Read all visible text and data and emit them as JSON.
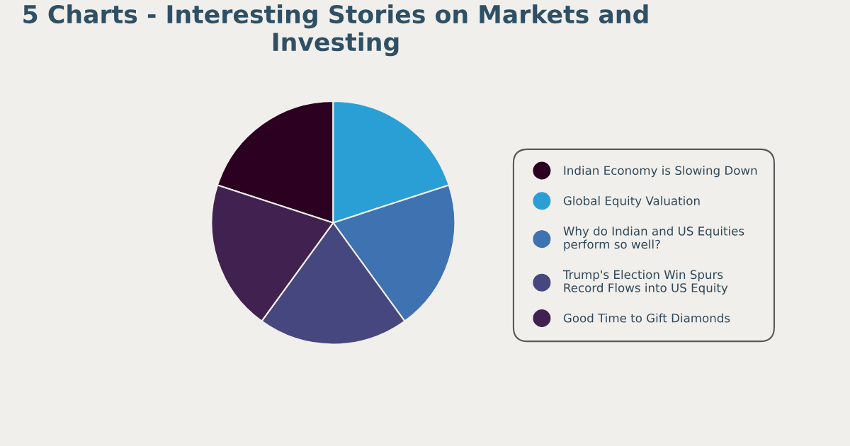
{
  "chart_data": {
    "type": "pie",
    "title": "5 Charts - Interesting Stories on Markets and Investing",
    "categories": [
      "Indian Economy is Slowing Down",
      "Global Equity Valuation",
      "Why do Indian and US Equities\nperform so well?",
      "Trump's Election Win Spurs\nRecord Flows into US Equity",
      "Good Time to Gift Diamonds"
    ],
    "values": [
      20,
      20,
      20,
      20,
      20
    ],
    "colors": [
      "#2b0020",
      "#2a9fd6",
      "#3e72b0",
      "#47477f",
      "#40214f"
    ],
    "legend": "right"
  }
}
